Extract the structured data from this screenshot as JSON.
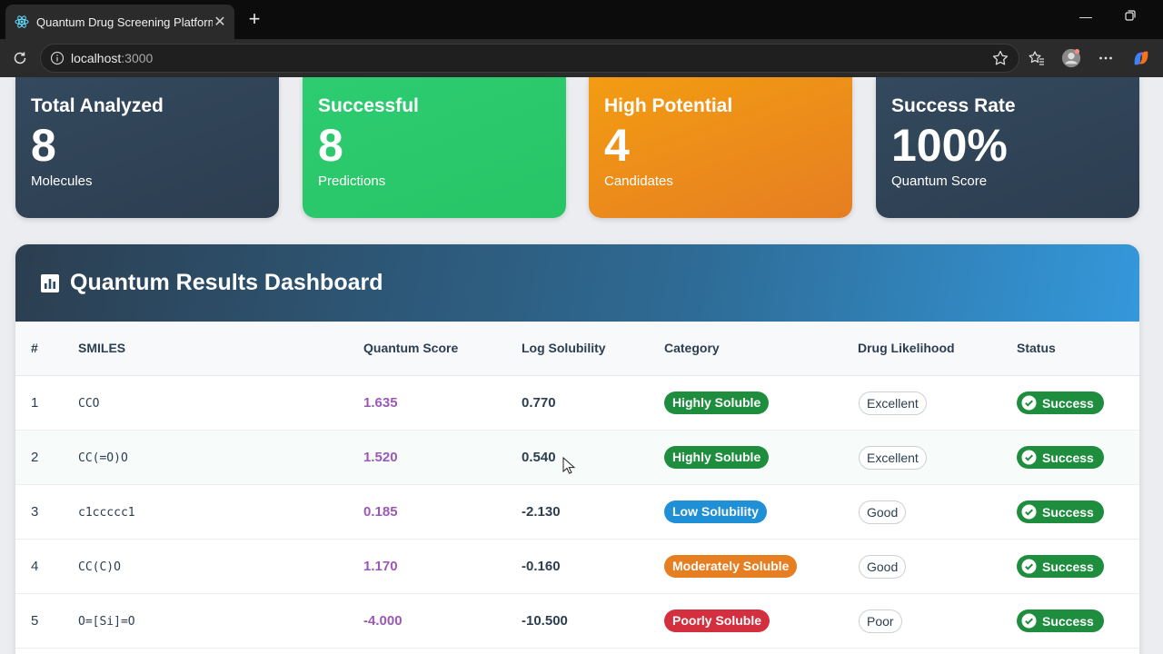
{
  "browser": {
    "tab_title": "Quantum Drug Screening Platform",
    "url_host": "localhost",
    "url_port": ":3000"
  },
  "stats": [
    {
      "title": "Total Analyzed",
      "value": "8",
      "sub": "Molecules"
    },
    {
      "title": "Successful",
      "value": "8",
      "sub": "Predictions"
    },
    {
      "title": "High Potential",
      "value": "4",
      "sub": "Candidates"
    },
    {
      "title": "Success Rate",
      "value": "100%",
      "sub": "Quantum Score"
    }
  ],
  "dashboard": {
    "title": "Quantum Results Dashboard",
    "columns": [
      "#",
      "SMILES",
      "Quantum Score",
      "Log Solubility",
      "Category",
      "Drug Likelihood",
      "Status"
    ],
    "rows": [
      {
        "num": "1",
        "smiles": "CCO",
        "score": "1.635",
        "log_sol": "0.770",
        "category": "Highly Soluble",
        "likelihood": "Excellent",
        "status": "Success"
      },
      {
        "num": "2",
        "smiles": "CC(=O)O",
        "score": "1.520",
        "log_sol": "0.540",
        "category": "Highly Soluble",
        "likelihood": "Excellent",
        "status": "Success"
      },
      {
        "num": "3",
        "smiles": "c1ccccc1",
        "score": "0.185",
        "log_sol": "-2.130",
        "category": "Low Solubility",
        "likelihood": "Good",
        "status": "Success"
      },
      {
        "num": "4",
        "smiles": "CC(C)O",
        "score": "1.170",
        "log_sol": "-0.160",
        "category": "Moderately Soluble",
        "likelihood": "Good",
        "status": "Success"
      },
      {
        "num": "5",
        "smiles": "O=[Si]=O",
        "score": "-4.000",
        "log_sol": "-10.500",
        "category": "Poorly Soluble",
        "likelihood": "Poor",
        "status": "Success"
      }
    ]
  },
  "colors": {
    "highly_soluble": "#1e8e3e",
    "low_solubility": "#1f8fd6",
    "moderately_soluble": "#e67e22",
    "poorly_soluble": "#d32f3f",
    "success": "#1e8e3e",
    "score_purple": "#9b59b6"
  }
}
